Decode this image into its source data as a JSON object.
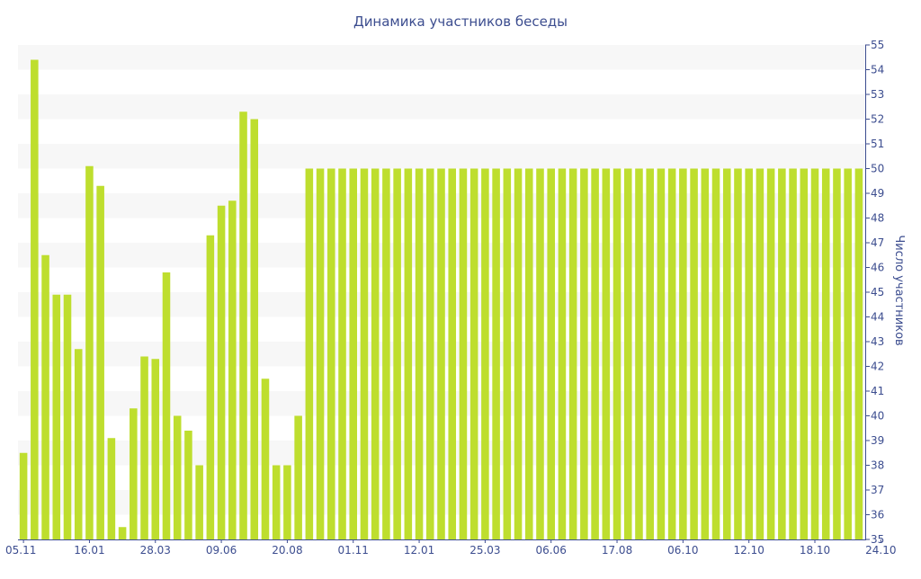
{
  "chart_data": {
    "type": "bar",
    "title": "Динамика участников беседы",
    "ylabel": "Число участников",
    "xlabel": "",
    "ylim": [
      35,
      55
    ],
    "y_ticks": [
      35,
      36,
      37,
      38,
      39,
      40,
      41,
      42,
      43,
      44,
      45,
      46,
      47,
      48,
      49,
      50,
      51,
      52,
      53,
      54,
      55
    ],
    "y_axis_side": "right",
    "x_tick_labels": [
      {
        "index": 0,
        "label": "05.11"
      },
      {
        "index": 6,
        "label": "16.01"
      },
      {
        "index": 12,
        "label": "28.03"
      },
      {
        "index": 18,
        "label": "09.06"
      },
      {
        "index": 24,
        "label": "20.08"
      },
      {
        "index": 30,
        "label": "01.11"
      },
      {
        "index": 36,
        "label": "12.01"
      },
      {
        "index": 42,
        "label": "25.03"
      },
      {
        "index": 48,
        "label": "06.06"
      },
      {
        "index": 54,
        "label": "17.08"
      },
      {
        "index": 60,
        "label": "06.10"
      },
      {
        "index": 66,
        "label": "12.10"
      },
      {
        "index": 72,
        "label": "18.10"
      },
      {
        "index": 78,
        "label": "24.10"
      }
    ],
    "values": [
      38.5,
      54.4,
      46.5,
      44.9,
      44.9,
      42.7,
      50.1,
      49.3,
      39.1,
      35.5,
      40.3,
      42.4,
      42.3,
      45.8,
      40.0,
      39.4,
      38.0,
      47.3,
      48.5,
      48.7,
      52.3,
      52.0,
      41.5,
      38.0,
      38.0,
      40.0,
      50,
      50,
      50,
      50,
      50,
      50,
      50,
      50,
      50,
      50,
      50,
      50,
      50,
      50,
      50,
      50,
      50,
      50,
      50,
      50,
      50,
      50,
      50,
      50,
      50,
      50,
      50,
      50,
      50,
      50,
      50,
      50,
      50,
      50,
      50,
      50,
      50,
      50,
      50,
      50,
      50,
      50,
      50,
      50,
      50,
      50,
      50,
      50,
      50,
      50,
      50
    ],
    "grid": "alternating horizontal bands",
    "legend": "none",
    "colors": {
      "bar": "#bede2e",
      "band": "#f7f7f7",
      "text": "#3c4d8f",
      "axis": "#3c4d8f"
    }
  }
}
